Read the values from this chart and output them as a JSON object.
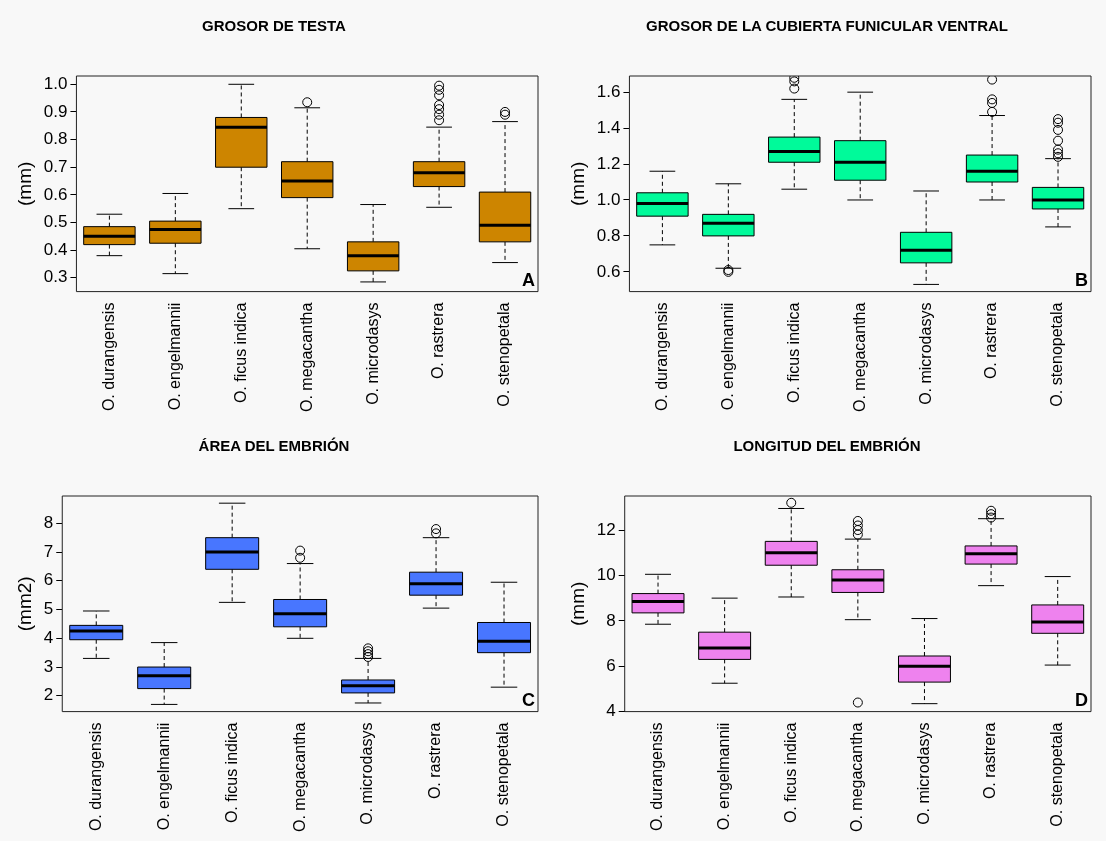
{
  "chart_data": [
    {
      "type": "box",
      "title": "GROSOR DE TESTA",
      "ylabel": "(mm)",
      "categories": [
        "O. durangensis",
        "O. engelmannii",
        "O. ficus indica",
        "O. megacantha",
        "O. microdasys",
        "O. rastrera",
        "O. stenopetala"
      ],
      "color": "#cd8500",
      "ylim": [
        0.25,
        1.03
      ],
      "yticks": [
        0.3,
        0.4,
        0.5,
        0.6,
        0.7,
        0.8,
        0.9,
        {
          "value": 1,
          "label": "1.0"
        }
      ],
      "grid": false,
      "annotations": [
        "A"
      ],
      "boxes": [
        {
          "low": 0.38,
          "q1": 0.42,
          "median": 0.45,
          "q3": 0.485,
          "high": 0.53
        },
        {
          "low": 0.315,
          "q1": 0.425,
          "median": 0.475,
          "q3": 0.505,
          "high": 0.605
        },
        {
          "low": 0.55,
          "q1": 0.7,
          "median": 0.845,
          "q3": 0.88,
          "high": 1.0
        },
        {
          "low": 0.405,
          "q1": 0.59,
          "median": 0.65,
          "q3": 0.72,
          "high": 0.915,
          "outliers": [
            0.935
          ]
        },
        {
          "low": 0.285,
          "q1": 0.325,
          "median": 0.38,
          "q3": 0.43,
          "high": 0.565
        },
        {
          "low": 0.555,
          "q1": 0.63,
          "median": 0.68,
          "q3": 0.72,
          "high": 0.845,
          "outliers": [
            0.995,
            0.98,
            0.96,
            0.925,
            0.91,
            0.89,
            0.87
          ]
        },
        {
          "low": 0.355,
          "q1": 0.43,
          "median": 0.49,
          "q3": 0.61,
          "high": 0.865,
          "outliers": [
            0.9,
            0.89
          ]
        }
      ]
    },
    {
      "type": "box",
      "title": "GROSOR DE LA CUBIERTA FUNICULAR VENTRAL",
      "ylabel": "(mm)",
      "categories": [
        "O. durangensis",
        "O. engelmannii",
        "O. ficus indica",
        "O. megacantha",
        "O. microdasys",
        "O. rastrera",
        "O. stenopetala"
      ],
      "color": "#00fa9a",
      "ylim": [
        0.49,
        1.69
      ],
      "yticks": [
        0.6,
        0.8,
        {
          "value": 1,
          "label": "1.0"
        },
        1.2,
        1.4,
        1.6
      ],
      "grid": false,
      "annotations": [
        "B"
      ],
      "boxes": [
        {
          "low": 0.75,
          "q1": 0.91,
          "median": 0.98,
          "q3": 1.04,
          "high": 1.16
        },
        {
          "low": 0.62,
          "q1": 0.8,
          "median": 0.87,
          "q3": 0.92,
          "high": 1.09,
          "outliers": [
            0.61,
            0.6
          ]
        },
        {
          "low": 1.06,
          "q1": 1.21,
          "median": 1.27,
          "q3": 1.35,
          "high": 1.56,
          "outliers": [
            1.68,
            1.66,
            1.62
          ]
        },
        {
          "low": 1.0,
          "q1": 1.11,
          "median": 1.21,
          "q3": 1.33,
          "high": 1.6
        },
        {
          "low": 0.53,
          "q1": 0.65,
          "median": 0.72,
          "q3": 0.82,
          "high": 1.05
        },
        {
          "low": 1.0,
          "q1": 1.1,
          "median": 1.16,
          "q3": 1.25,
          "high": 1.47,
          "outliers": [
            1.67,
            1.56,
            1.54,
            1.49
          ]
        },
        {
          "low": 0.85,
          "q1": 0.95,
          "median": 1.0,
          "q3": 1.07,
          "high": 1.23,
          "outliers": [
            1.45,
            1.43,
            1.39,
            1.33,
            1.28,
            1.26,
            1.24
          ]
        }
      ]
    },
    {
      "type": "box",
      "title": "ÁREA DEL EMBRIÓN",
      "ylabel": "(mm2)",
      "categories": [
        "O. durangensis",
        "O. engelmannii",
        "O. ficus indica",
        "O. megacantha",
        "O. microdasys",
        "O. rastrera",
        "O. stenopetala"
      ],
      "color": "#4876ff",
      "ylim": [
        1.45,
        8.95
      ],
      "yticks": [
        2,
        3,
        4,
        5,
        6,
        7,
        8
      ],
      "grid": false,
      "annotations": [
        "C"
      ],
      "boxes": [
        {
          "low": 3.3,
          "q1": 3.95,
          "median": 4.25,
          "q3": 4.45,
          "high": 4.95
        },
        {
          "low": 1.7,
          "q1": 2.25,
          "median": 2.7,
          "q3": 3.0,
          "high": 3.85
        },
        {
          "low": 5.25,
          "q1": 6.4,
          "median": 7.0,
          "q3": 7.5,
          "high": 8.7
        },
        {
          "low": 4.0,
          "q1": 4.4,
          "median": 4.85,
          "q3": 5.35,
          "high": 6.6,
          "outliers": [
            7.05,
            6.8
          ]
        },
        {
          "low": 1.75,
          "q1": 2.1,
          "median": 2.35,
          "q3": 2.55,
          "high": 3.3,
          "outliers": [
            3.65,
            3.55,
            3.45,
            3.35
          ]
        },
        {
          "low": 5.05,
          "q1": 5.5,
          "median": 5.9,
          "q3": 6.3,
          "high": 7.5,
          "outliers": [
            7.8,
            7.65
          ]
        },
        {
          "low": 2.3,
          "q1": 3.5,
          "median": 3.9,
          "q3": 4.55,
          "high": 5.95
        }
      ]
    },
    {
      "type": "box",
      "title": "LONGITUD DEL EMBRIÓN",
      "ylabel": "(mm)",
      "categories": [
        "O. durangensis",
        "O. engelmannii",
        "O. ficus indica",
        "O. megacantha",
        "O. microdasys",
        "O. rastrera",
        "O. stenopetala"
      ],
      "color": "#ee82ee",
      "ylim": [
        4,
        13.5
      ],
      "yticks": [
        4,
        6,
        8,
        10,
        12
      ],
      "grid": false,
      "annotations": [
        "D"
      ],
      "boxes": [
        {
          "low": 7.85,
          "q1": 8.35,
          "median": 8.85,
          "q3": 9.2,
          "high": 10.05
        },
        {
          "low": 5.25,
          "q1": 6.3,
          "median": 6.8,
          "q3": 7.5,
          "high": 9.0
        },
        {
          "low": 9.05,
          "q1": 10.45,
          "median": 11.0,
          "q3": 11.5,
          "high": 12.95,
          "outliers": [
            13.2
          ]
        },
        {
          "low": 8.05,
          "q1": 9.25,
          "median": 9.8,
          "q3": 10.25,
          "high": 11.6,
          "outliers": [
            12.4,
            12.2,
            12.0,
            11.8,
            4.4
          ]
        },
        {
          "low": 4.35,
          "q1": 5.3,
          "median": 6.0,
          "q3": 6.45,
          "high": 8.1
        },
        {
          "low": 9.55,
          "q1": 10.5,
          "median": 10.95,
          "q3": 11.3,
          "high": 12.5,
          "outliers": [
            12.85,
            12.7,
            12.55
          ]
        },
        {
          "low": 6.05,
          "q1": 7.45,
          "median": 7.95,
          "q3": 8.7,
          "high": 9.95
        }
      ]
    }
  ]
}
